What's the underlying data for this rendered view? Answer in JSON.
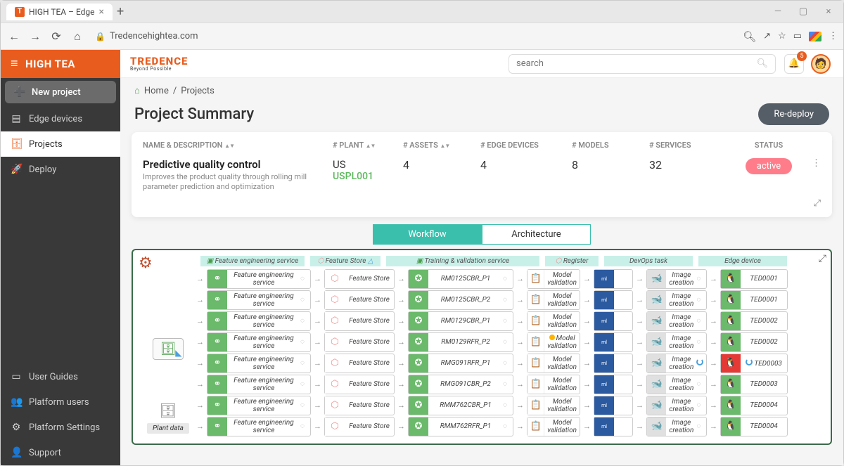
{
  "browser": {
    "tab_title": "HIGH TEA – Edge",
    "url": "Tredencehightea.com"
  },
  "brand": {
    "app": "HIGH TEA",
    "company": "TREDENCE",
    "tagline": "Beyond Possible"
  },
  "header": {
    "search_placeholder": "search",
    "notification_count": "5"
  },
  "sidebar": {
    "new_project": "New project",
    "edge_devices": "Edge devices",
    "projects": "Projects",
    "deploy": "Deploy",
    "user_guides": "User Guides",
    "platform_users": "Platform users",
    "platform_settings": "Platform Settings",
    "support": "Support"
  },
  "breadcrumb": {
    "home": "Home",
    "current": "Projects"
  },
  "page": {
    "title": "Project Summary",
    "redeploy": "Re-deploy"
  },
  "summary": {
    "cols": {
      "name": "NAME & DESCRIPTION",
      "plant": "# PLANT",
      "assets": "# ASSETS",
      "edge": "# EDGE DEVICES",
      "models": "# MODELS",
      "services": "# SERVICES",
      "status": "STATUS"
    },
    "row": {
      "name": "Predictive quality control",
      "desc": "Improves the product quality through rolling mill parameter prediction and optimization",
      "plant_region": "US",
      "plant_code": "USPL001",
      "assets": "4",
      "edge": "4",
      "models": "8",
      "services": "32",
      "status": "active"
    }
  },
  "tabs": {
    "workflow": "Workflow",
    "architecture": "Architecture"
  },
  "wf_headers": {
    "fe": "Feature engineering service",
    "fs": "Feature Store",
    "tv": "Training & validation service",
    "reg": "Register",
    "dev": "DevOps task",
    "ed": "Edge device"
  },
  "wf_labels": {
    "fe": "Feature engineering service",
    "fs": "Feature Store",
    "mv": "Model validation",
    "img": "Image creation",
    "ml": "ml",
    "plant_data": "Plant data"
  },
  "wf_rows": [
    {
      "tv": "RM0125CBR_P1",
      "ed": "TED0001",
      "ed_style": "olive",
      "reg_dot": false,
      "img_spin": false
    },
    {
      "tv": "RM0125CBR_P2",
      "ed": "TED0001",
      "ed_style": "olive",
      "reg_dot": false,
      "img_spin": false
    },
    {
      "tv": "RM0129CBR_P1",
      "ed": "TED0002",
      "ed_style": "olive",
      "reg_dot": false,
      "img_spin": false
    },
    {
      "tv": "RM0129RFR_P2",
      "ed": "TED0002",
      "ed_style": "olive",
      "reg_dot": true,
      "img_spin": false
    },
    {
      "tv": "RMG091RFR_P1",
      "ed": "TED0003",
      "ed_style": "red",
      "reg_dot": false,
      "img_spin": true
    },
    {
      "tv": "RMG091CBR_P2",
      "ed": "TED0003",
      "ed_style": "olive",
      "reg_dot": false,
      "img_spin": false
    },
    {
      "tv": "RMM762CBR_P1",
      "ed": "TED0004",
      "ed_style": "olive",
      "reg_dot": false,
      "img_spin": false
    },
    {
      "tv": "RMM762RFR_P1",
      "ed": "TED0004",
      "ed_style": "olive",
      "reg_dot": false,
      "img_spin": false
    }
  ],
  "colors": {
    "brand_orange": "#e85c1e",
    "sidebar_bg": "#3a3939",
    "accent_teal": "#3bbfad",
    "node_green": "#6bb96b",
    "node_blue": "#2c5aa0",
    "status_pink": "#ff7d8a",
    "node_red": "#e53935"
  }
}
